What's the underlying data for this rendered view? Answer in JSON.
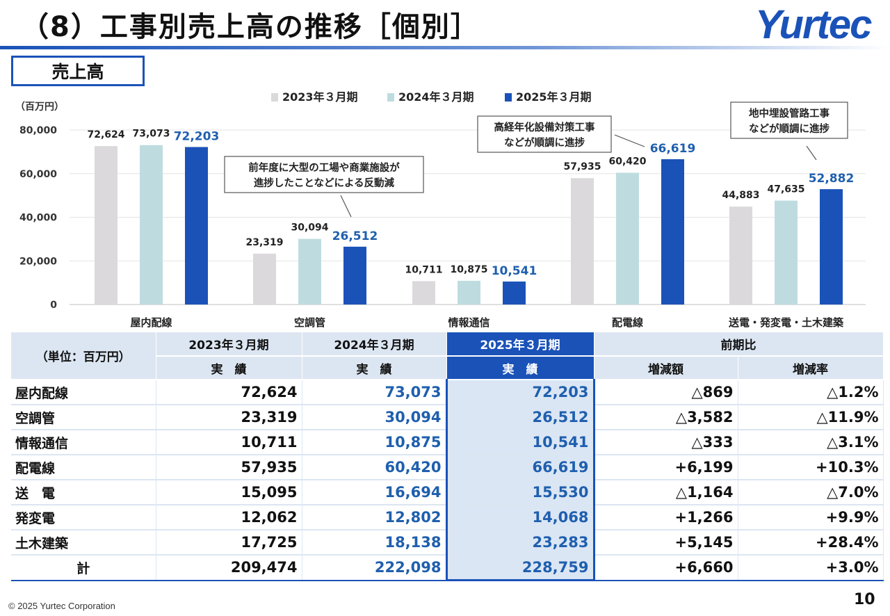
{
  "header": {
    "title": "（8）工事別売上高の推移［個別］",
    "logo_text": "Yurtec"
  },
  "section_label": "売上高",
  "chart_data": {
    "type": "bar",
    "unit_label": "（百万円）",
    "categories": [
      "屋内配線",
      "空調管",
      "情報通信",
      "配電線",
      "送電・発変電・土木建築"
    ],
    "series": [
      {
        "name": "2023年３月期",
        "color": "#dcd9dc",
        "values": [
          72624,
          23319,
          10711,
          57935,
          44883
        ]
      },
      {
        "name": "2024年３月期",
        "color": "#bedcdf",
        "values": [
          73073,
          30094,
          10875,
          60420,
          47635
        ]
      },
      {
        "name": "2025年３月期",
        "color": "#1a52b8",
        "values": [
          72203,
          26512,
          10541,
          66619,
          52882
        ]
      }
    ],
    "ylim": [
      0,
      80000
    ],
    "yticks": [
      "0",
      "20,000",
      "40,000",
      "60,000",
      "80,000"
    ],
    "value_labels": [
      [
        "72,624",
        "23,319",
        "10,711",
        "57,935",
        "44,883"
      ],
      [
        "73,073",
        "30,094",
        "10,875",
        "60,420",
        "47,635"
      ],
      [
        "72,203",
        "26,512",
        "10,541",
        "66,619",
        "52,882"
      ]
    ],
    "legend_position": "top-center",
    "grid": true,
    "annotations": [
      {
        "category": "空調管",
        "lines": [
          "前年度に大型の工場や商業施設が",
          "進捗したことなどによる反動減"
        ]
      },
      {
        "category": "配電線",
        "lines": [
          "高経年化設備対策工事",
          "などが順調に進捗"
        ]
      },
      {
        "category": "送電・発変電・土木建築",
        "lines": [
          "地中埋設管路工事",
          "などが順調に進捗"
        ]
      }
    ]
  },
  "table": {
    "unit_label": "（単位：百万円）",
    "period_headers": [
      "2023年３月期",
      "2024年３月期",
      "2025年３月期"
    ],
    "comparison_header": "前期比",
    "actual_label": "実　績",
    "change_amount_label": "増減額",
    "change_rate_label": "増減率",
    "rows": [
      {
        "label": "屋内配線",
        "v2023": "72,624",
        "v2024": "73,073",
        "v2025": "72,203",
        "diff": "△869",
        "rate": "△1.2%"
      },
      {
        "label": "空調管",
        "v2023": "23,319",
        "v2024": "30,094",
        "v2025": "26,512",
        "diff": "△3,582",
        "rate": "△11.9%"
      },
      {
        "label": "情報通信",
        "v2023": "10,711",
        "v2024": "10,875",
        "v2025": "10,541",
        "diff": "△333",
        "rate": "△3.1%"
      },
      {
        "label": "配電線",
        "v2023": "57,935",
        "v2024": "60,420",
        "v2025": "66,619",
        "diff": "+6,199",
        "rate": "+10.3%"
      },
      {
        "label": "送　電",
        "v2023": "15,095",
        "v2024": "16,694",
        "v2025": "15,530",
        "diff": "△1,164",
        "rate": "△7.0%"
      },
      {
        "label": "発変電",
        "v2023": "12,062",
        "v2024": "12,802",
        "v2025": "14,068",
        "diff": "+1,266",
        "rate": "+9.9%"
      },
      {
        "label": "土木建築",
        "v2023": "17,725",
        "v2024": "18,138",
        "v2025": "23,283",
        "diff": "+5,145",
        "rate": "+28.4%"
      }
    ],
    "total": {
      "label": "計",
      "v2023": "209,474",
      "v2024": "222,098",
      "v2025": "228,759",
      "diff": "+6,660",
      "rate": "+3.0%"
    }
  },
  "footer": {
    "copyright": "© 2025 Yurtec Corporation",
    "page_number": "10"
  }
}
